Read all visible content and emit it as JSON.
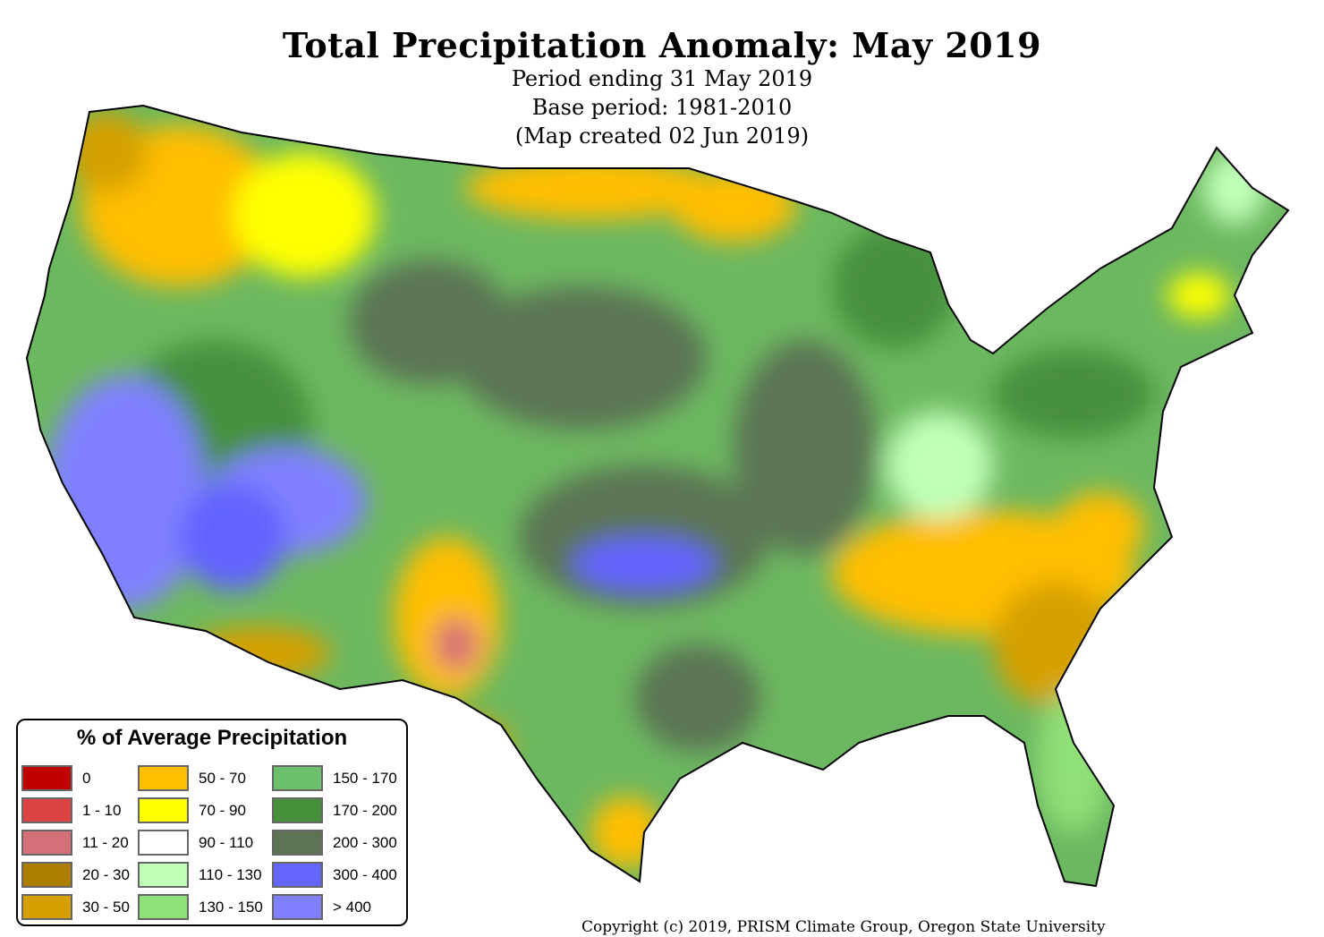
{
  "title": "Total Precipitation Anomaly: May 2019",
  "subtitle_lines": [
    "Period ending 31 May 2019",
    "Base period: 1981-2010",
    "(Map created 02 Jun 2019)"
  ],
  "legend": {
    "title": "% of Average Precipitation",
    "items": [
      {
        "label": "0",
        "color": "#c00000"
      },
      {
        "label": "1 - 10",
        "color": "#dc4444"
      },
      {
        "label": "11 - 20",
        "color": "#d67078"
      },
      {
        "label": "20 - 30",
        "color": "#ae7e00"
      },
      {
        "label": "30 - 50",
        "color": "#d6a000"
      },
      {
        "label": "50 - 70",
        "color": "#ffbe00"
      },
      {
        "label": "70 - 90",
        "color": "#ffff00"
      },
      {
        "label": "90 - 110",
        "color": "#ffffff"
      },
      {
        "label": "110 - 130",
        "color": "#c0ffb8"
      },
      {
        "label": "130 - 150",
        "color": "#90e078"
      },
      {
        "label": "150 - 170",
        "color": "#6cc06c"
      },
      {
        "label": "170 - 200",
        "color": "#46903c"
      },
      {
        "label": "200 - 300",
        "color": "#5c7454"
      },
      {
        "label": "300 - 400",
        "color": "#6464ff"
      },
      {
        "label": "> 400",
        "color": "#8080ff"
      }
    ]
  },
  "copyright": "Copyright (c) 2019, PRISM Climate Group, Oregon State University"
}
